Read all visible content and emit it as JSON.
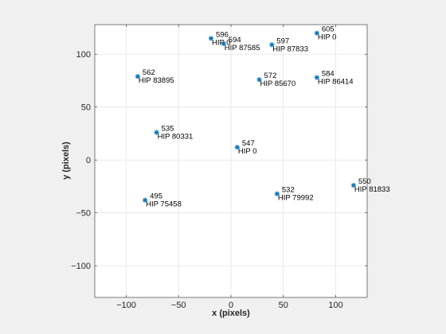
{
  "chart_data": {
    "type": "scatter",
    "xlabel": "x (pixels)",
    "ylabel": "y (pixels)",
    "xlim": [
      -130,
      130
    ],
    "ylim": [
      -130,
      128
    ],
    "xticks": [
      -100,
      -50,
      0,
      50,
      100
    ],
    "yticks": [
      -100,
      -50,
      0,
      50,
      100
    ],
    "grid": true,
    "marker": "*",
    "marker_color": "#0072BD",
    "points": [
      {
        "x": 82,
        "y": 120,
        "id": "605",
        "hip": "HIP 0"
      },
      {
        "x": -19,
        "y": 115,
        "id": "596",
        "hip": "HIP 0"
      },
      {
        "x": -7,
        "y": 110,
        "id": "594",
        "hip": "HIP 87585"
      },
      {
        "x": 39,
        "y": 109,
        "id": "597",
        "hip": "HIP 87833"
      },
      {
        "x": -89,
        "y": 79,
        "id": "562",
        "hip": "HIP 83895"
      },
      {
        "x": 27,
        "y": 76,
        "id": "572",
        "hip": "HIP 85670"
      },
      {
        "x": 82,
        "y": 78,
        "id": "584",
        "hip": "HIP 86414"
      },
      {
        "x": -71,
        "y": 26,
        "id": "535",
        "hip": "HIP 80331"
      },
      {
        "x": 6,
        "y": 12,
        "id": "547",
        "hip": "HIP 0"
      },
      {
        "x": 117,
        "y": -24,
        "id": "550",
        "hip": "HIP 81833"
      },
      {
        "x": 44,
        "y": -32,
        "id": "532",
        "hip": "HIP 79992"
      },
      {
        "x": -82,
        "y": -38,
        "id": "495",
        "hip": "HIP 75458"
      }
    ]
  }
}
